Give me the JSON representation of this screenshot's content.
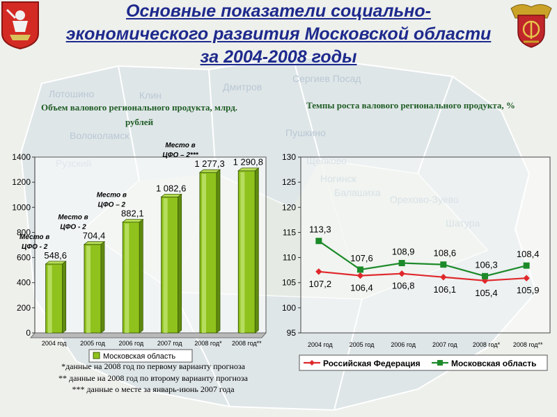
{
  "slide": {
    "title": "Основные показатели социально-экономического развития Московской области за 2004-2008 годы",
    "title_color": "#1e2a8c",
    "left_emblem_icon": "moscow-oblast-coat-of-arms-icon",
    "right_emblem_icon": "fsb-emblem-icon",
    "background_map_labels": [
      "Лотошино",
      "Клин",
      "Дмитров",
      "Сергиев Посад",
      "Пушкино",
      "Волоколамск",
      "Щелково",
      "Ногинск",
      "Балашиха",
      "Орехово-Зуево",
      "Шатура",
      "Рузский"
    ]
  },
  "notes": [
    "*данные на 2008 год по первому варианту прогноза",
    "** данные на 2008 год по второму варианту прогноза",
    "*** данные о месте за январь-июнь 2007 года"
  ],
  "chart_data": [
    {
      "type": "bar",
      "title": "Объем валового регионального продукта, млрд. рублей",
      "categories": [
        "2004 год",
        "2005 год",
        "2006 год",
        "2007 год",
        "2008 год*",
        "2008 год**"
      ],
      "series": [
        {
          "name": "Московская область",
          "values": [
            548.6,
            704.4,
            882.1,
            1082.6,
            1277.3,
            1290.8
          ],
          "color": "#8fc21c"
        }
      ],
      "value_labels": [
        "548,6",
        "704,4",
        "882,1",
        "1 082,6",
        "1 277,3",
        "1 290,8"
      ],
      "annotations": [
        {
          "category": 0,
          "lines": [
            "Место в",
            "ЦФО - 2"
          ]
        },
        {
          "category": 1,
          "lines": [
            "Место в",
            "ЦФО - 2"
          ]
        },
        {
          "category": 2,
          "lines": [
            "Место в",
            "ЦФО – 2"
          ]
        },
        {
          "category": 4,
          "lines": [
            "Место в",
            "ЦФО – 2***"
          ]
        }
      ],
      "ylim": [
        0,
        1400
      ],
      "yticks": [
        0,
        200,
        400,
        600,
        800,
        1000,
        1200,
        1400
      ],
      "grid": false,
      "legend": "bottom"
    },
    {
      "type": "line",
      "title": "Темпы роста валового регионального продукта, %",
      "categories": [
        "2004 год",
        "2005 год",
        "2006 год",
        "2007 год",
        "2008 год*",
        "2008 год**"
      ],
      "series": [
        {
          "name": "Российская Федерация",
          "values": [
            107.2,
            106.4,
            106.8,
            106.1,
            105.4,
            105.9
          ],
          "labels": [
            "107,2",
            "106,4",
            "106,8",
            "106,1",
            "105,4",
            "105,9"
          ],
          "color": "#e0282c",
          "marker": "diamond"
        },
        {
          "name": "Московская область",
          "values": [
            113.3,
            107.6,
            108.9,
            108.6,
            106.3,
            108.4
          ],
          "labels": [
            "113,3",
            "107,6",
            "108,9",
            "108,6",
            "106,3",
            "108,4"
          ],
          "color": "#1d8a2a",
          "marker": "square"
        }
      ],
      "ylim": [
        95,
        130
      ],
      "yticks": [
        95,
        100,
        105,
        110,
        115,
        120,
        125,
        130
      ],
      "grid": false,
      "legend": "bottom"
    }
  ]
}
